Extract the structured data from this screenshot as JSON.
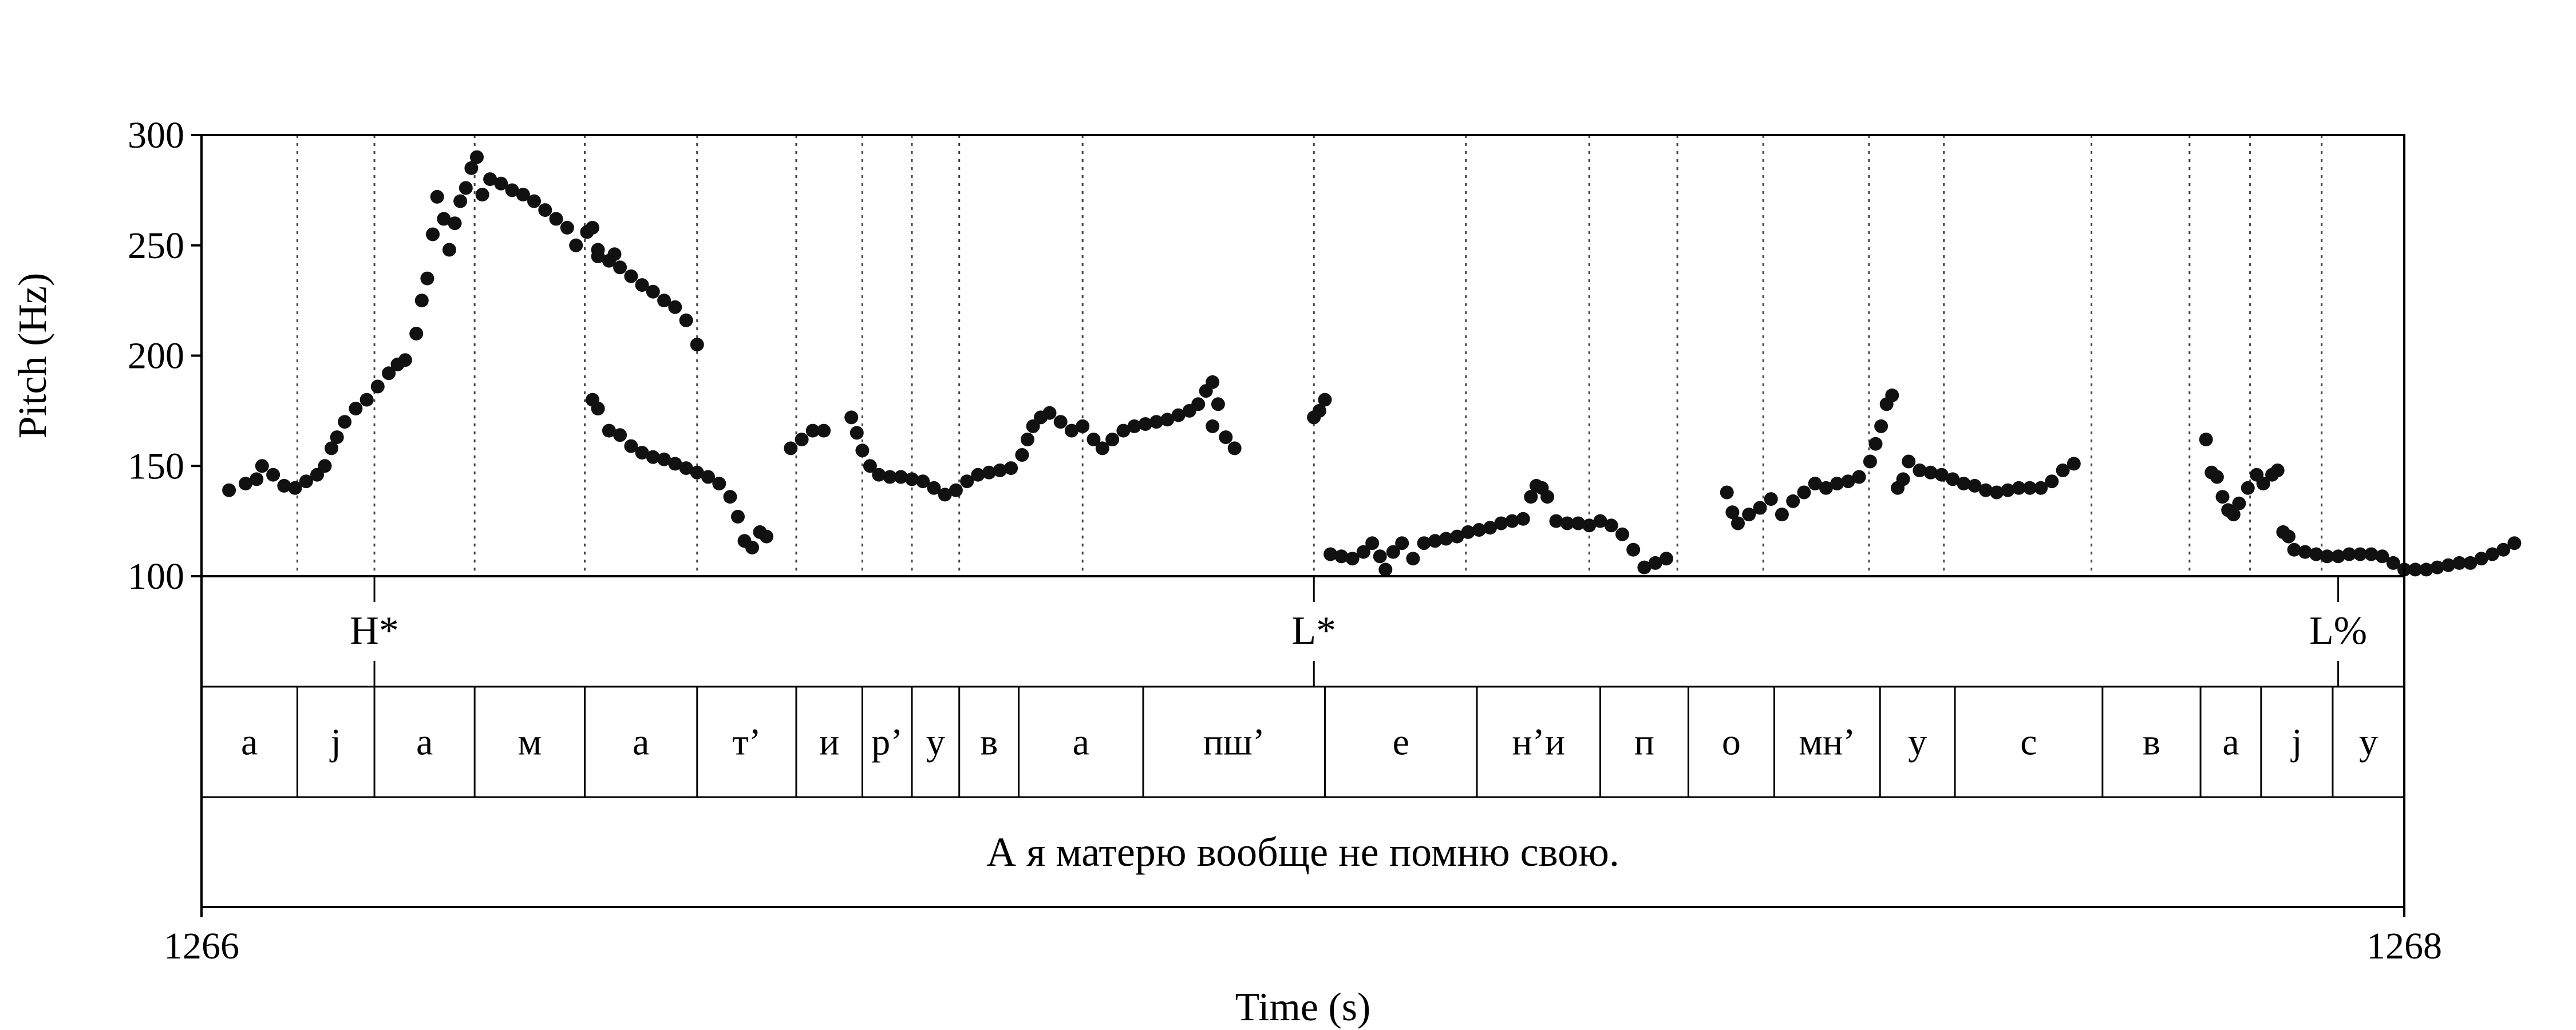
{
  "chart_data": {
    "type": "scatter",
    "xlabel": "Time (s)",
    "ylabel": "Pitch (Hz)",
    "xlim": [
      1266,
      1268
    ],
    "ylim": [
      100,
      300
    ],
    "x_ticks": [
      {
        "value": 1266,
        "label": "1266"
      },
      {
        "value": 1268,
        "label": "1268"
      }
    ],
    "y_ticks": [
      {
        "value": 100,
        "label": "100"
      },
      {
        "value": 150,
        "label": "150"
      },
      {
        "value": 200,
        "label": "200"
      },
      {
        "value": 250,
        "label": "250"
      },
      {
        "value": 300,
        "label": "300"
      }
    ],
    "pitch_contour": [
      [
        1266.025,
        139
      ],
      [
        1266.04,
        142
      ],
      [
        1266.05,
        144
      ],
      [
        1266.055,
        150
      ],
      [
        1266.065,
        146
      ],
      [
        1266.075,
        141
      ],
      [
        1266.085,
        140
      ],
      [
        1266.095,
        143
      ],
      [
        1266.105,
        146
      ],
      [
        1266.112,
        150
      ],
      [
        1266.118,
        158
      ],
      [
        1266.123,
        163
      ],
      [
        1266.13,
        170
      ],
      [
        1266.14,
        176
      ],
      [
        1266.15,
        180
      ],
      [
        1266.16,
        186
      ],
      [
        1266.17,
        192
      ],
      [
        1266.178,
        196
      ],
      [
        1266.185,
        198
      ],
      [
        1266.195,
        210
      ],
      [
        1266.2,
        225
      ],
      [
        1266.205,
        235
      ],
      [
        1266.21,
        255
      ],
      [
        1266.214,
        272
      ],
      [
        1266.22,
        262
      ],
      [
        1266.225,
        248
      ],
      [
        1266.23,
        260
      ],
      [
        1266.235,
        270
      ],
      [
        1266.24,
        276
      ],
      [
        1266.245,
        285
      ],
      [
        1266.25,
        290
      ],
      [
        1266.255,
        273
      ],
      [
        1266.262,
        280
      ],
      [
        1266.272,
        278
      ],
      [
        1266.282,
        275
      ],
      [
        1266.292,
        273
      ],
      [
        1266.302,
        270
      ],
      [
        1266.312,
        266
      ],
      [
        1266.322,
        262
      ],
      [
        1266.332,
        258
      ],
      [
        1266.34,
        250
      ],
      [
        1266.35,
        256
      ],
      [
        1266.36,
        248
      ],
      [
        1266.37,
        243
      ],
      [
        1266.38,
        240
      ],
      [
        1266.39,
        236
      ],
      [
        1266.4,
        232
      ],
      [
        1266.41,
        229
      ],
      [
        1266.42,
        225
      ],
      [
        1266.43,
        222
      ],
      [
        1266.44,
        216
      ],
      [
        1266.45,
        205
      ],
      [
        1266.355,
        258
      ],
      [
        1266.36,
        245
      ],
      [
        1266.375,
        246
      ],
      [
        1266.355,
        180
      ],
      [
        1266.36,
        176
      ],
      [
        1266.37,
        166
      ],
      [
        1266.38,
        164
      ],
      [
        1266.39,
        159
      ],
      [
        1266.4,
        156
      ],
      [
        1266.41,
        154
      ],
      [
        1266.42,
        153
      ],
      [
        1266.43,
        151
      ],
      [
        1266.44,
        149
      ],
      [
        1266.45,
        147
      ],
      [
        1266.46,
        145
      ],
      [
        1266.47,
        142
      ],
      [
        1266.48,
        136
      ],
      [
        1266.487,
        127
      ],
      [
        1266.493,
        116
      ],
      [
        1266.5,
        113
      ],
      [
        1266.507,
        120
      ],
      [
        1266.513,
        118
      ],
      [
        1266.535,
        158
      ],
      [
        1266.545,
        162
      ],
      [
        1266.555,
        166
      ],
      [
        1266.565,
        166
      ],
      [
        1266.59,
        172
      ],
      [
        1266.595,
        165
      ],
      [
        1266.6,
        157
      ],
      [
        1266.607,
        150
      ],
      [
        1266.615,
        146
      ],
      [
        1266.625,
        145
      ],
      [
        1266.635,
        145
      ],
      [
        1266.645,
        144
      ],
      [
        1266.655,
        143
      ],
      [
        1266.665,
        140
      ],
      [
        1266.675,
        137
      ],
      [
        1266.685,
        139
      ],
      [
        1266.695,
        143
      ],
      [
        1266.705,
        146
      ],
      [
        1266.715,
        147
      ],
      [
        1266.725,
        148
      ],
      [
        1266.735,
        149
      ],
      [
        1266.745,
        155
      ],
      [
        1266.75,
        162
      ],
      [
        1266.755,
        168
      ],
      [
        1266.762,
        172
      ],
      [
        1266.77,
        174
      ],
      [
        1266.78,
        170
      ],
      [
        1266.79,
        166
      ],
      [
        1266.8,
        168
      ],
      [
        1266.81,
        162
      ],
      [
        1266.818,
        158
      ],
      [
        1266.827,
        162
      ],
      [
        1266.837,
        166
      ],
      [
        1266.847,
        168
      ],
      [
        1266.857,
        169
      ],
      [
        1266.867,
        170
      ],
      [
        1266.877,
        171
      ],
      [
        1266.887,
        173
      ],
      [
        1266.897,
        175
      ],
      [
        1266.905,
        178
      ],
      [
        1266.912,
        184
      ],
      [
        1266.918,
        188
      ],
      [
        1266.923,
        178
      ],
      [
        1266.93,
        163
      ],
      [
        1266.938,
        158
      ],
      [
        1266.918,
        168
      ],
      [
        1267.01,
        172
      ],
      [
        1267.015,
        175
      ],
      [
        1267.02,
        180
      ],
      [
        1267.025,
        110
      ],
      [
        1267.035,
        109
      ],
      [
        1267.045,
        108
      ],
      [
        1267.055,
        111
      ],
      [
        1267.063,
        115
      ],
      [
        1267.07,
        109
      ],
      [
        1267.075,
        103
      ],
      [
        1267.082,
        111
      ],
      [
        1267.09,
        115
      ],
      [
        1267.1,
        108
      ],
      [
        1267.11,
        115
      ],
      [
        1267.12,
        116
      ],
      [
        1267.13,
        117
      ],
      [
        1267.14,
        118
      ],
      [
        1267.15,
        120
      ],
      [
        1267.16,
        121
      ],
      [
        1267.17,
        122
      ],
      [
        1267.18,
        124
      ],
      [
        1267.19,
        125
      ],
      [
        1267.2,
        126
      ],
      [
        1267.207,
        136
      ],
      [
        1267.212,
        141
      ],
      [
        1267.217,
        140
      ],
      [
        1267.222,
        136
      ],
      [
        1267.23,
        125
      ],
      [
        1267.24,
        124
      ],
      [
        1267.25,
        124
      ],
      [
        1267.26,
        123
      ],
      [
        1267.27,
        125
      ],
      [
        1267.28,
        123
      ],
      [
        1267.29,
        119
      ],
      [
        1267.3,
        112
      ],
      [
        1267.31,
        104
      ],
      [
        1267.32,
        106
      ],
      [
        1267.33,
        108
      ],
      [
        1267.385,
        138
      ],
      [
        1267.39,
        129
      ],
      [
        1267.395,
        124
      ],
      [
        1267.405,
        128
      ],
      [
        1267.415,
        131
      ],
      [
        1267.425,
        135
      ],
      [
        1267.435,
        128
      ],
      [
        1267.445,
        134
      ],
      [
        1267.455,
        138
      ],
      [
        1267.465,
        142
      ],
      [
        1267.475,
        140
      ],
      [
        1267.485,
        142
      ],
      [
        1267.495,
        143
      ],
      [
        1267.505,
        145
      ],
      [
        1267.515,
        152
      ],
      [
        1267.52,
        160
      ],
      [
        1267.525,
        168
      ],
      [
        1267.53,
        178
      ],
      [
        1267.535,
        182
      ],
      [
        1267.54,
        140
      ],
      [
        1267.545,
        144
      ],
      [
        1267.55,
        152
      ],
      [
        1267.56,
        148
      ],
      [
        1267.57,
        147
      ],
      [
        1267.58,
        146
      ],
      [
        1267.59,
        144
      ],
      [
        1267.6,
        142
      ],
      [
        1267.61,
        141
      ],
      [
        1267.62,
        139
      ],
      [
        1267.63,
        138
      ],
      [
        1267.64,
        139
      ],
      [
        1267.65,
        140
      ],
      [
        1267.66,
        140
      ],
      [
        1267.67,
        140
      ],
      [
        1267.68,
        143
      ],
      [
        1267.69,
        148
      ],
      [
        1267.7,
        151
      ],
      [
        1267.82,
        162
      ],
      [
        1267.825,
        147
      ],
      [
        1267.83,
        145
      ],
      [
        1267.835,
        136
      ],
      [
        1267.84,
        130
      ],
      [
        1267.845,
        128
      ],
      [
        1267.85,
        133
      ],
      [
        1267.858,
        140
      ],
      [
        1267.866,
        146
      ],
      [
        1267.872,
        142
      ],
      [
        1267.88,
        146
      ],
      [
        1267.885,
        148
      ],
      [
        1267.89,
        120
      ],
      [
        1267.895,
        118
      ],
      [
        1267.9,
        112
      ],
      [
        1267.91,
        111
      ],
      [
        1267.92,
        110
      ],
      [
        1267.93,
        109
      ],
      [
        1267.94,
        109
      ],
      [
        1267.95,
        110
      ],
      [
        1267.96,
        110
      ],
      [
        1267.97,
        110
      ],
      [
        1267.98,
        109
      ],
      [
        1267.99,
        106
      ],
      [
        1268.0,
        103
      ],
      [
        1268.01,
        103
      ],
      [
        1268.02,
        103
      ],
      [
        1268.03,
        104
      ],
      [
        1268.04,
        105
      ],
      [
        1268.05,
        106
      ],
      [
        1268.06,
        106
      ],
      [
        1268.07,
        108
      ],
      [
        1268.08,
        110
      ],
      [
        1268.09,
        112
      ],
      [
        1268.1,
        115
      ]
    ],
    "tone_tier": [
      {
        "time": 1266.157,
        "label": "H*"
      },
      {
        "time": 1267.01,
        "label": "L*"
      },
      {
        "time": 1267.94,
        "label": "L%"
      }
    ],
    "boundary_times": [
      1266.087,
      1266.157,
      1266.248,
      1266.348,
      1266.45,
      1266.54,
      1266.6,
      1266.645,
      1266.688,
      1266.8,
      1267.01,
      1267.148,
      1267.26,
      1267.34,
      1267.418,
      1267.514,
      1267.582,
      1267.716,
      1267.805,
      1267.86,
      1267.925
    ],
    "segments": [
      {
        "start": 1266.0,
        "end": 1266.087,
        "label": "а"
      },
      {
        "start": 1266.087,
        "end": 1266.157,
        "label": "j"
      },
      {
        "start": 1266.157,
        "end": 1266.248,
        "label": "а"
      },
      {
        "start": 1266.248,
        "end": 1266.348,
        "label": "м"
      },
      {
        "start": 1266.348,
        "end": 1266.45,
        "label": "а"
      },
      {
        "start": 1266.45,
        "end": 1266.54,
        "label": "т’"
      },
      {
        "start": 1266.54,
        "end": 1266.6,
        "label": "и"
      },
      {
        "start": 1266.6,
        "end": 1266.645,
        "label": "р’"
      },
      {
        "start": 1266.645,
        "end": 1266.688,
        "label": "у"
      },
      {
        "start": 1266.688,
        "end": 1266.742,
        "label": "в"
      },
      {
        "start": 1266.742,
        "end": 1266.855,
        "label": "а"
      },
      {
        "start": 1266.855,
        "end": 1267.02,
        "label": "пш’"
      },
      {
        "start": 1267.02,
        "end": 1267.158,
        "label": "е"
      },
      {
        "start": 1267.158,
        "end": 1267.27,
        "label": "н’и"
      },
      {
        "start": 1267.27,
        "end": 1267.35,
        "label": "п"
      },
      {
        "start": 1267.35,
        "end": 1267.428,
        "label": "о"
      },
      {
        "start": 1267.428,
        "end": 1267.524,
        "label": "мн’"
      },
      {
        "start": 1267.524,
        "end": 1267.592,
        "label": "у"
      },
      {
        "start": 1267.592,
        "end": 1267.726,
        "label": "с"
      },
      {
        "start": 1267.726,
        "end": 1267.815,
        "label": "в"
      },
      {
        "start": 1267.815,
        "end": 1267.87,
        "label": "а"
      },
      {
        "start": 1267.87,
        "end": 1267.935,
        "label": "j"
      },
      {
        "start": 1267.935,
        "end": 1268.0,
        "label": "у"
      }
    ],
    "sentence": {
      "start": 1266.0,
      "end": 1268.0,
      "label": "А я матерю вообще не помню свою."
    },
    "grid": false,
    "legend": "none",
    "colors": {
      "points": "#111111",
      "lines": "#000000",
      "boundaries": "#444444"
    }
  }
}
